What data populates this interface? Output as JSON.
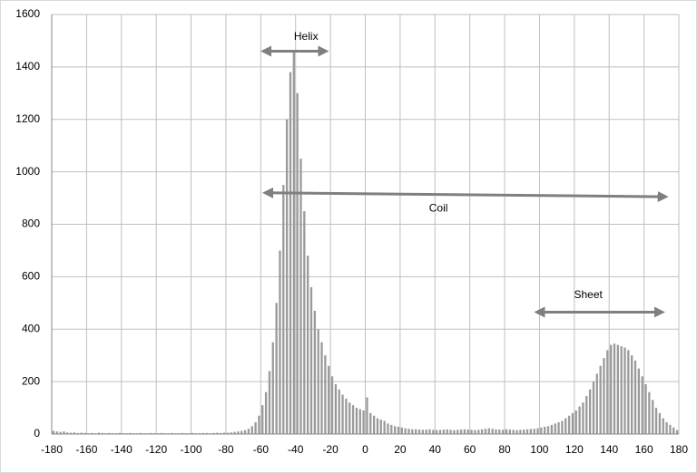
{
  "chart_data": {
    "type": "histogram",
    "bins": [
      -180,
      -178,
      -176,
      -174,
      -172,
      -170,
      -168,
      -166,
      -164,
      -162,
      -160,
      -158,
      -156,
      -154,
      -152,
      -150,
      -148,
      -146,
      -144,
      -142,
      -140,
      -138,
      -136,
      -134,
      -132,
      -130,
      -128,
      -126,
      -124,
      -122,
      -120,
      -118,
      -116,
      -114,
      -112,
      -110,
      -108,
      -106,
      -104,
      -102,
      -100,
      -98,
      -96,
      -94,
      -92,
      -90,
      -88,
      -86,
      -84,
      -82,
      -80,
      -78,
      -76,
      -74,
      -72,
      -70,
      -68,
      -66,
      -64,
      -62,
      -60,
      -58,
      -56,
      -54,
      -52,
      -50,
      -48,
      -46,
      -44,
      -42,
      -40,
      -38,
      -36,
      -34,
      -32,
      -30,
      -28,
      -26,
      -24,
      -22,
      -20,
      -18,
      -16,
      -14,
      -12,
      -10,
      -8,
      -6,
      -4,
      -2,
      0,
      2,
      4,
      6,
      8,
      10,
      12,
      14,
      16,
      18,
      20,
      22,
      24,
      26,
      28,
      30,
      32,
      34,
      36,
      38,
      40,
      42,
      44,
      46,
      48,
      50,
      52,
      54,
      56,
      58,
      60,
      62,
      64,
      66,
      68,
      70,
      72,
      74,
      76,
      78,
      80,
      82,
      84,
      86,
      88,
      90,
      92,
      94,
      96,
      98,
      100,
      102,
      104,
      106,
      108,
      110,
      112,
      114,
      116,
      118,
      120,
      122,
      124,
      126,
      128,
      130,
      132,
      134,
      136,
      138,
      140,
      142,
      144,
      146,
      148,
      150,
      152,
      154,
      156,
      158,
      160,
      162,
      164,
      166,
      168,
      170,
      172,
      174,
      176,
      178,
      180
    ],
    "values": [
      12,
      10,
      8,
      10,
      6,
      5,
      6,
      4,
      5,
      4,
      3,
      4,
      3,
      5,
      4,
      3,
      4,
      3,
      3,
      4,
      3,
      3,
      4,
      3,
      3,
      4,
      3,
      3,
      4,
      3,
      3,
      4,
      3,
      3,
      4,
      3,
      3,
      4,
      3,
      3,
      4,
      3,
      3,
      4,
      4,
      3,
      4,
      5,
      4,
      5,
      5,
      6,
      8,
      10,
      12,
      15,
      20,
      30,
      45,
      70,
      110,
      160,
      240,
      350,
      500,
      700,
      950,
      1200,
      1380,
      1460,
      1300,
      1050,
      850,
      680,
      560,
      470,
      400,
      350,
      300,
      260,
      220,
      190,
      170,
      150,
      135,
      120,
      110,
      100,
      95,
      90,
      140,
      80,
      70,
      60,
      55,
      50,
      40,
      35,
      30,
      28,
      25,
      22,
      20,
      18,
      18,
      17,
      16,
      17,
      18,
      16,
      15,
      16,
      17,
      18,
      16,
      15,
      16,
      17,
      18,
      17,
      16,
      15,
      16,
      18,
      20,
      22,
      20,
      18,
      17,
      16,
      18,
      17,
      16,
      15,
      16,
      17,
      18,
      19,
      20,
      22,
      25,
      28,
      30,
      35,
      40,
      45,
      50,
      60,
      70,
      80,
      90,
      105,
      120,
      145,
      170,
      200,
      230,
      260,
      290,
      320,
      340,
      345,
      340,
      335,
      330,
      320,
      300,
      280,
      250,
      220,
      190,
      160,
      130,
      100,
      80,
      60,
      45,
      35,
      25,
      15
    ],
    "color": "#9a9a9a",
    "xlim": [
      -180,
      180
    ],
    "xticks": [
      -180,
      -160,
      -140,
      -120,
      -100,
      -80,
      -60,
      -40,
      -20,
      0,
      20,
      40,
      60,
      80,
      100,
      120,
      140,
      160,
      180
    ],
    "ylim": [
      0,
      1600
    ],
    "yticks": [
      0,
      200,
      400,
      600,
      800,
      1000,
      1200,
      1400,
      1600
    ],
    "grid": true,
    "annotations": [
      {
        "text": "Helix",
        "x": [
          -57,
          -24
        ],
        "y": 1460,
        "label_x": -34,
        "label_y": 1515
      },
      {
        "text": "Coil",
        "x": [
          -56,
          171
        ],
        "y": [
          920,
          905
        ],
        "label_x": 42,
        "label_y": 860
      },
      {
        "text": "Sheet",
        "x": [
          100,
          169
        ],
        "y": 465,
        "label_x": 128,
        "label_y": 530
      }
    ],
    "annotation_color": "#7f7f7f"
  }
}
